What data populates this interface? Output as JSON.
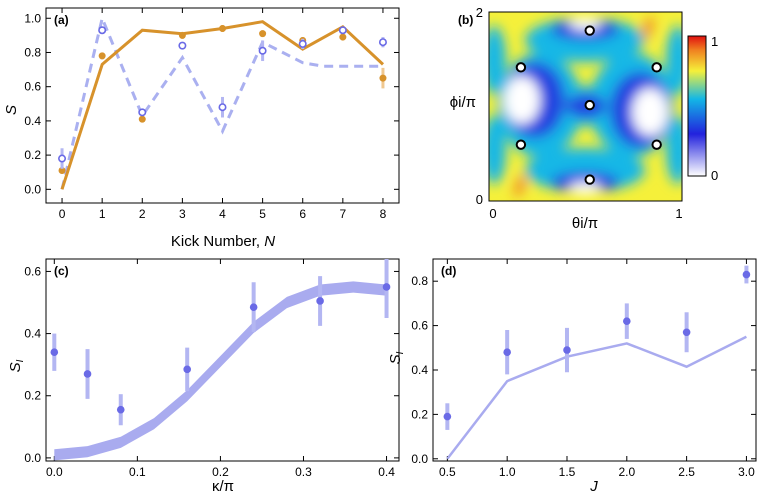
{
  "colors": {
    "orange": "#d7922b",
    "blue_dashed": "#aab0f0",
    "blue_marker": "#6a6ae6",
    "blue_band": "#a9abef",
    "blue_errbar": "#b3b6f2",
    "frame": "#000000"
  },
  "chart_data": [
    {
      "panel": "(a)",
      "type": "line",
      "xlabel": "Kick Number, ",
      "xlabel_italic": "N",
      "ylabel": "S",
      "xlim": [
        -0.4,
        8.4
      ],
      "ylim": [
        -0.08,
        1.06
      ],
      "xticks": [
        "0",
        "1",
        "2",
        "3",
        "4",
        "5",
        "6",
        "7",
        "8"
      ],
      "yticks": [
        "0.0",
        "0.2",
        "0.4",
        "0.6",
        "0.8",
        "1.0"
      ],
      "series": [
        {
          "style": "solid-orange-line",
          "x": [
            0,
            1,
            2,
            3,
            4,
            5,
            6,
            7,
            8
          ],
          "y": [
            0.0,
            0.73,
            0.93,
            0.91,
            0.94,
            0.98,
            0.82,
            0.95,
            0.73
          ]
        },
        {
          "style": "dashed-blue-line",
          "x": [
            0,
            1,
            2,
            3,
            4,
            5,
            6,
            6.5,
            7,
            8
          ],
          "y": [
            0.0,
            1.0,
            0.43,
            0.77,
            0.34,
            0.86,
            0.74,
            0.72,
            0.72,
            0.72
          ]
        },
        {
          "style": "orange-filled-markers",
          "x": [
            0,
            1,
            2,
            3,
            4,
            5,
            6,
            7,
            8
          ],
          "y": [
            0.11,
            0.78,
            0.41,
            0.9,
            0.94,
            0.91,
            0.87,
            0.89,
            0.65
          ],
          "err": [
            0.02,
            0.02,
            0.02,
            0.02,
            0.02,
            0.02,
            0.02,
            0.02,
            0.06
          ]
        },
        {
          "style": "blue-open-markers",
          "x": [
            0,
            1,
            2,
            3,
            4,
            5,
            6,
            7,
            8
          ],
          "y": [
            0.18,
            0.93,
            0.45,
            0.84,
            0.48,
            0.81,
            0.85,
            0.93,
            0.86
          ],
          "err": [
            0.06,
            0.02,
            0.02,
            0.02,
            0.06,
            0.06,
            0.03,
            0.02,
            0.03
          ]
        }
      ]
    },
    {
      "panel": "(b)",
      "type": "heatmap",
      "xlabel": "θi/π",
      "ylabel": "ϕi/π",
      "xlim": [
        0,
        1
      ],
      "ylim": [
        0,
        2
      ],
      "xticks": [
        "0",
        "1"
      ],
      "yticks": [
        "0",
        "2"
      ],
      "colorbar": {
        "min": 0,
        "max": 1,
        "ticks": [
          "1",
          "0"
        ],
        "colors": [
          "#ffffff",
          "#2222dd",
          "#13b7e6",
          "#f5f03a",
          "#f08020",
          "#e01010"
        ]
      },
      "markers": [
        {
          "theta": 0.52,
          "phi": 1.82
        },
        {
          "theta": 0.15,
          "phi": 1.42
        },
        {
          "theta": 0.88,
          "phi": 1.42
        },
        {
          "theta": 0.52,
          "phi": 1.01
        },
        {
          "theta": 0.15,
          "phi": 0.58
        },
        {
          "theta": 0.88,
          "phi": 0.58
        },
        {
          "theta": 0.52,
          "phi": 0.2
        }
      ]
    },
    {
      "panel": "(c)",
      "type": "scatter",
      "xlabel": "κ/π",
      "ylabel": "S",
      "ylabel_sub": "I",
      "xlim": [
        -0.01,
        0.415
      ],
      "ylim": [
        -0.01,
        0.64
      ],
      "xticks": [
        "0.0",
        "0.1",
        "0.2",
        "0.3",
        "0.4"
      ],
      "yticks": [
        "0.0",
        "0.2",
        "0.4",
        "0.6"
      ],
      "series": [
        {
          "style": "theory-band",
          "x": [
            0,
            0.04,
            0.08,
            0.12,
            0.16,
            0.2,
            0.24,
            0.28,
            0.32,
            0.36,
            0.4
          ],
          "y": [
            0.01,
            0.02,
            0.05,
            0.11,
            0.2,
            0.31,
            0.42,
            0.5,
            0.54,
            0.55,
            0.54
          ],
          "halfwidth": 0.018
        },
        {
          "style": "points-with-errorbars",
          "x": [
            0,
            0.04,
            0.08,
            0.16,
            0.24,
            0.32,
            0.4
          ],
          "y": [
            0.34,
            0.27,
            0.155,
            0.285,
            0.485,
            0.505,
            0.55
          ],
          "err": [
            0.06,
            0.08,
            0.05,
            0.07,
            0.08,
            0.08,
            0.1
          ]
        }
      ]
    },
    {
      "panel": "(d)",
      "type": "scatter",
      "xlabel": "J",
      "ylabel": "S",
      "ylabel_sub": "I",
      "xlim": [
        0.38,
        3.08
      ],
      "ylim": [
        -0.01,
        0.9
      ],
      "xticks": [
        "0.5",
        "1.0",
        "1.5",
        "2.0",
        "2.5",
        "3.0"
      ],
      "yticks": [
        "0.0",
        "0.2",
        "0.4",
        "0.6",
        "0.8"
      ],
      "series": [
        {
          "style": "theory-line",
          "x": [
            0.5,
            1.0,
            1.5,
            2.0,
            2.5,
            3.0
          ],
          "y": [
            0.0,
            0.35,
            0.46,
            0.52,
            0.415,
            0.55
          ]
        },
        {
          "style": "points-with-errorbars",
          "x": [
            0.5,
            1.0,
            1.5,
            2.0,
            2.5,
            3.0
          ],
          "y": [
            0.19,
            0.48,
            0.49,
            0.62,
            0.57,
            0.83
          ],
          "err": [
            0.06,
            0.1,
            0.1,
            0.08,
            0.09,
            0.04
          ]
        }
      ]
    }
  ]
}
